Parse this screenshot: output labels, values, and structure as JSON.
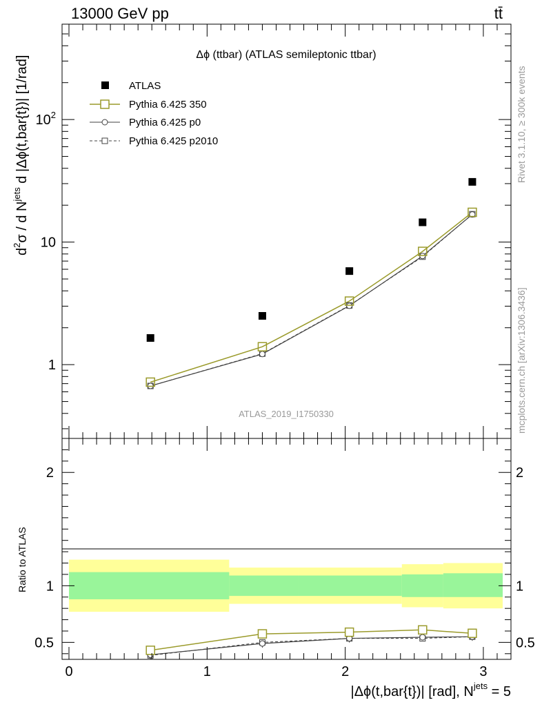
{
  "header": {
    "energy_label": "13000 GeV pp",
    "process_label": "tt̄"
  },
  "side_labels": {
    "rivet": "Rivet 3.1.10, ≥ 300k events",
    "mcplots": "mcplots.cern.ch [arXiv:1306.3436]"
  },
  "chart_data": {
    "type": "scatter",
    "title": "Δϕ (ttbar) (ATLAS semileptonic ttbar)",
    "watermark": "ATLAS_2019_I1750330",
    "xlabel": "|Δϕ(t,bar{t})| [rad], N",
    "xlabel_sup": "jets",
    "xlabel_suffix": " = 5",
    "ylabel_pre": "d",
    "ylabel_sup1": "2",
    "ylabel_mid": "σ  /  d N",
    "ylabel_sup2": "jets",
    "ylabel_post": " d |Δϕ(t,bar{t})| [1/rad]",
    "ratio_ylabel": "Ratio to ATLAS",
    "xlim": [
      -0.05,
      3.2
    ],
    "ylim": [
      0.25,
      600
    ],
    "yscale": "log",
    "ratio_ylim": [
      0.35,
      2.3
    ],
    "x_ticks": [
      "0",
      "1",
      "2",
      "3"
    ],
    "y_ticks": [
      "1",
      "10",
      "10²"
    ],
    "ratio_ticks": [
      "0.5",
      "1",
      "2"
    ],
    "legend_placement": "top-left",
    "x": [
      0.59,
      1.4,
      2.03,
      2.56,
      2.92
    ],
    "bin_edges": [
      0.0,
      1.16,
      1.66,
      2.41,
      2.71,
      3.14
    ],
    "series": [
      {
        "name": "ATLAS",
        "style": "data",
        "color": "#000000",
        "values": [
          1.65,
          2.5,
          5.8,
          14.5,
          31.0
        ]
      },
      {
        "name": "Pythia 6.425 350",
        "style": "open-square",
        "color": "#9a9a2a",
        "values": [
          0.72,
          1.4,
          3.3,
          8.4,
          17.5
        ]
      },
      {
        "name": "Pythia 6.425 p0",
        "style": "open-circle",
        "color": "#404040",
        "values": [
          0.67,
          1.22,
          3.02,
          7.7,
          16.8
        ]
      },
      {
        "name": "Pythia 6.425 p2010",
        "style": "open-square-dashed",
        "color": "#404040",
        "values": [
          0.67,
          1.23,
          3.04,
          7.6,
          16.9
        ]
      }
    ],
    "ratio": {
      "inner_band": {
        "color": "#99f59a",
        "lo": [
          0.88,
          0.91,
          0.91,
          0.9,
          0.9
        ],
        "hi": [
          1.12,
          1.09,
          1.09,
          1.1,
          1.11
        ]
      },
      "outer_band": {
        "color": "#ffff99",
        "lo": [
          0.77,
          0.84,
          0.84,
          0.81,
          0.8
        ],
        "hi": [
          1.23,
          1.16,
          1.16,
          1.19,
          1.2
        ]
      },
      "series": [
        {
          "name": "Pythia 6.425 350",
          "values": [
            0.43,
            0.575,
            0.59,
            0.61,
            0.58
          ]
        },
        {
          "name": "Pythia 6.425 p0",
          "values": [
            0.39,
            0.49,
            0.535,
            0.545,
            0.55
          ]
        },
        {
          "name": "Pythia 6.425 p2010",
          "values": [
            0.385,
            0.5,
            0.535,
            0.535,
            0.55
          ]
        }
      ]
    }
  }
}
